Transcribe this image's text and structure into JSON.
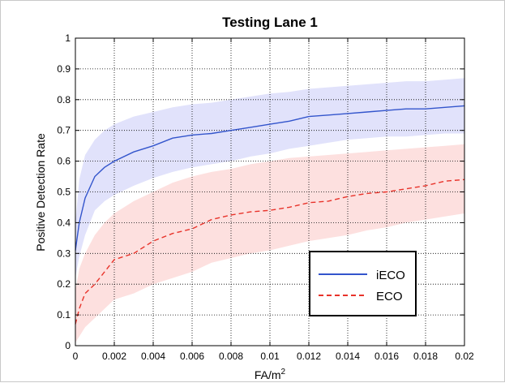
{
  "chart_data": {
    "type": "line",
    "title": "Testing Lane 1",
    "xlabel": "FA/m",
    "xlabel_superscript": "2",
    "ylabel": "Positive Detection Rate",
    "xlim": [
      0,
      0.02
    ],
    "ylim": [
      0,
      1
    ],
    "x_ticks": [
      0,
      0.002,
      0.004,
      0.006,
      0.008,
      0.01,
      0.012,
      0.014,
      0.016,
      0.018,
      0.02
    ],
    "x_tick_labels": [
      "0",
      "0.002",
      "0.004",
      "0.006",
      "0.008",
      "0.01",
      "0.012",
      "0.014",
      "0.016",
      "0.018",
      "0.02"
    ],
    "y_ticks": [
      0,
      0.1,
      0.2,
      0.3,
      0.4,
      0.5,
      0.6,
      0.7,
      0.8,
      0.9,
      1
    ],
    "y_tick_labels": [
      "0",
      "0.1",
      "0.2",
      "0.3",
      "0.4",
      "0.5",
      "0.6",
      "0.7",
      "0.8",
      "0.9",
      "1"
    ],
    "grid": true,
    "legend_position": "lower-right",
    "series": [
      {
        "name": "iECO",
        "color": "#3355cc",
        "band_color": "#e1e2fb",
        "line_style": "solid",
        "x": [
          0,
          0.0002,
          0.0005,
          0.001,
          0.0015,
          0.002,
          0.003,
          0.004,
          0.005,
          0.006,
          0.007,
          0.008,
          0.009,
          0.01,
          0.011,
          0.012,
          0.013,
          0.014,
          0.015,
          0.016,
          0.017,
          0.018,
          0.019,
          0.02
        ],
        "y": [
          0.31,
          0.4,
          0.48,
          0.55,
          0.58,
          0.6,
          0.63,
          0.65,
          0.675,
          0.685,
          0.69,
          0.7,
          0.71,
          0.72,
          0.73,
          0.745,
          0.75,
          0.755,
          0.76,
          0.765,
          0.77,
          0.77,
          0.775,
          0.78
        ],
        "upper": [
          0.4,
          0.54,
          0.62,
          0.67,
          0.7,
          0.72,
          0.745,
          0.76,
          0.775,
          0.785,
          0.79,
          0.8,
          0.81,
          0.82,
          0.825,
          0.835,
          0.84,
          0.845,
          0.85,
          0.855,
          0.86,
          0.86,
          0.865,
          0.87
        ],
        "lower": [
          0.22,
          0.29,
          0.36,
          0.44,
          0.47,
          0.49,
          0.52,
          0.545,
          0.565,
          0.58,
          0.59,
          0.6,
          0.615,
          0.625,
          0.64,
          0.65,
          0.66,
          0.67,
          0.675,
          0.68,
          0.68,
          0.685,
          0.69,
          0.69
        ]
      },
      {
        "name": "ECO",
        "color": "#e8332a",
        "band_color": "#fde0df",
        "line_style": "dashed",
        "x": [
          0,
          0.0002,
          0.0005,
          0.001,
          0.0015,
          0.002,
          0.003,
          0.004,
          0.005,
          0.006,
          0.007,
          0.008,
          0.009,
          0.01,
          0.011,
          0.012,
          0.013,
          0.014,
          0.015,
          0.016,
          0.017,
          0.018,
          0.019,
          0.02
        ],
        "y": [
          0.07,
          0.12,
          0.17,
          0.2,
          0.24,
          0.28,
          0.3,
          0.34,
          0.365,
          0.38,
          0.41,
          0.425,
          0.435,
          0.44,
          0.45,
          0.465,
          0.47,
          0.485,
          0.495,
          0.5,
          0.51,
          0.52,
          0.535,
          0.54
        ],
        "upper": [
          0.18,
          0.25,
          0.3,
          0.36,
          0.4,
          0.43,
          0.47,
          0.5,
          0.53,
          0.55,
          0.565,
          0.575,
          0.59,
          0.6,
          0.61,
          0.615,
          0.62,
          0.625,
          0.63,
          0.635,
          0.64,
          0.645,
          0.65,
          0.655
        ],
        "lower": [
          0.01,
          0.03,
          0.06,
          0.09,
          0.12,
          0.15,
          0.17,
          0.2,
          0.22,
          0.24,
          0.27,
          0.285,
          0.3,
          0.31,
          0.325,
          0.34,
          0.35,
          0.36,
          0.375,
          0.385,
          0.4,
          0.41,
          0.42,
          0.43
        ]
      }
    ]
  }
}
